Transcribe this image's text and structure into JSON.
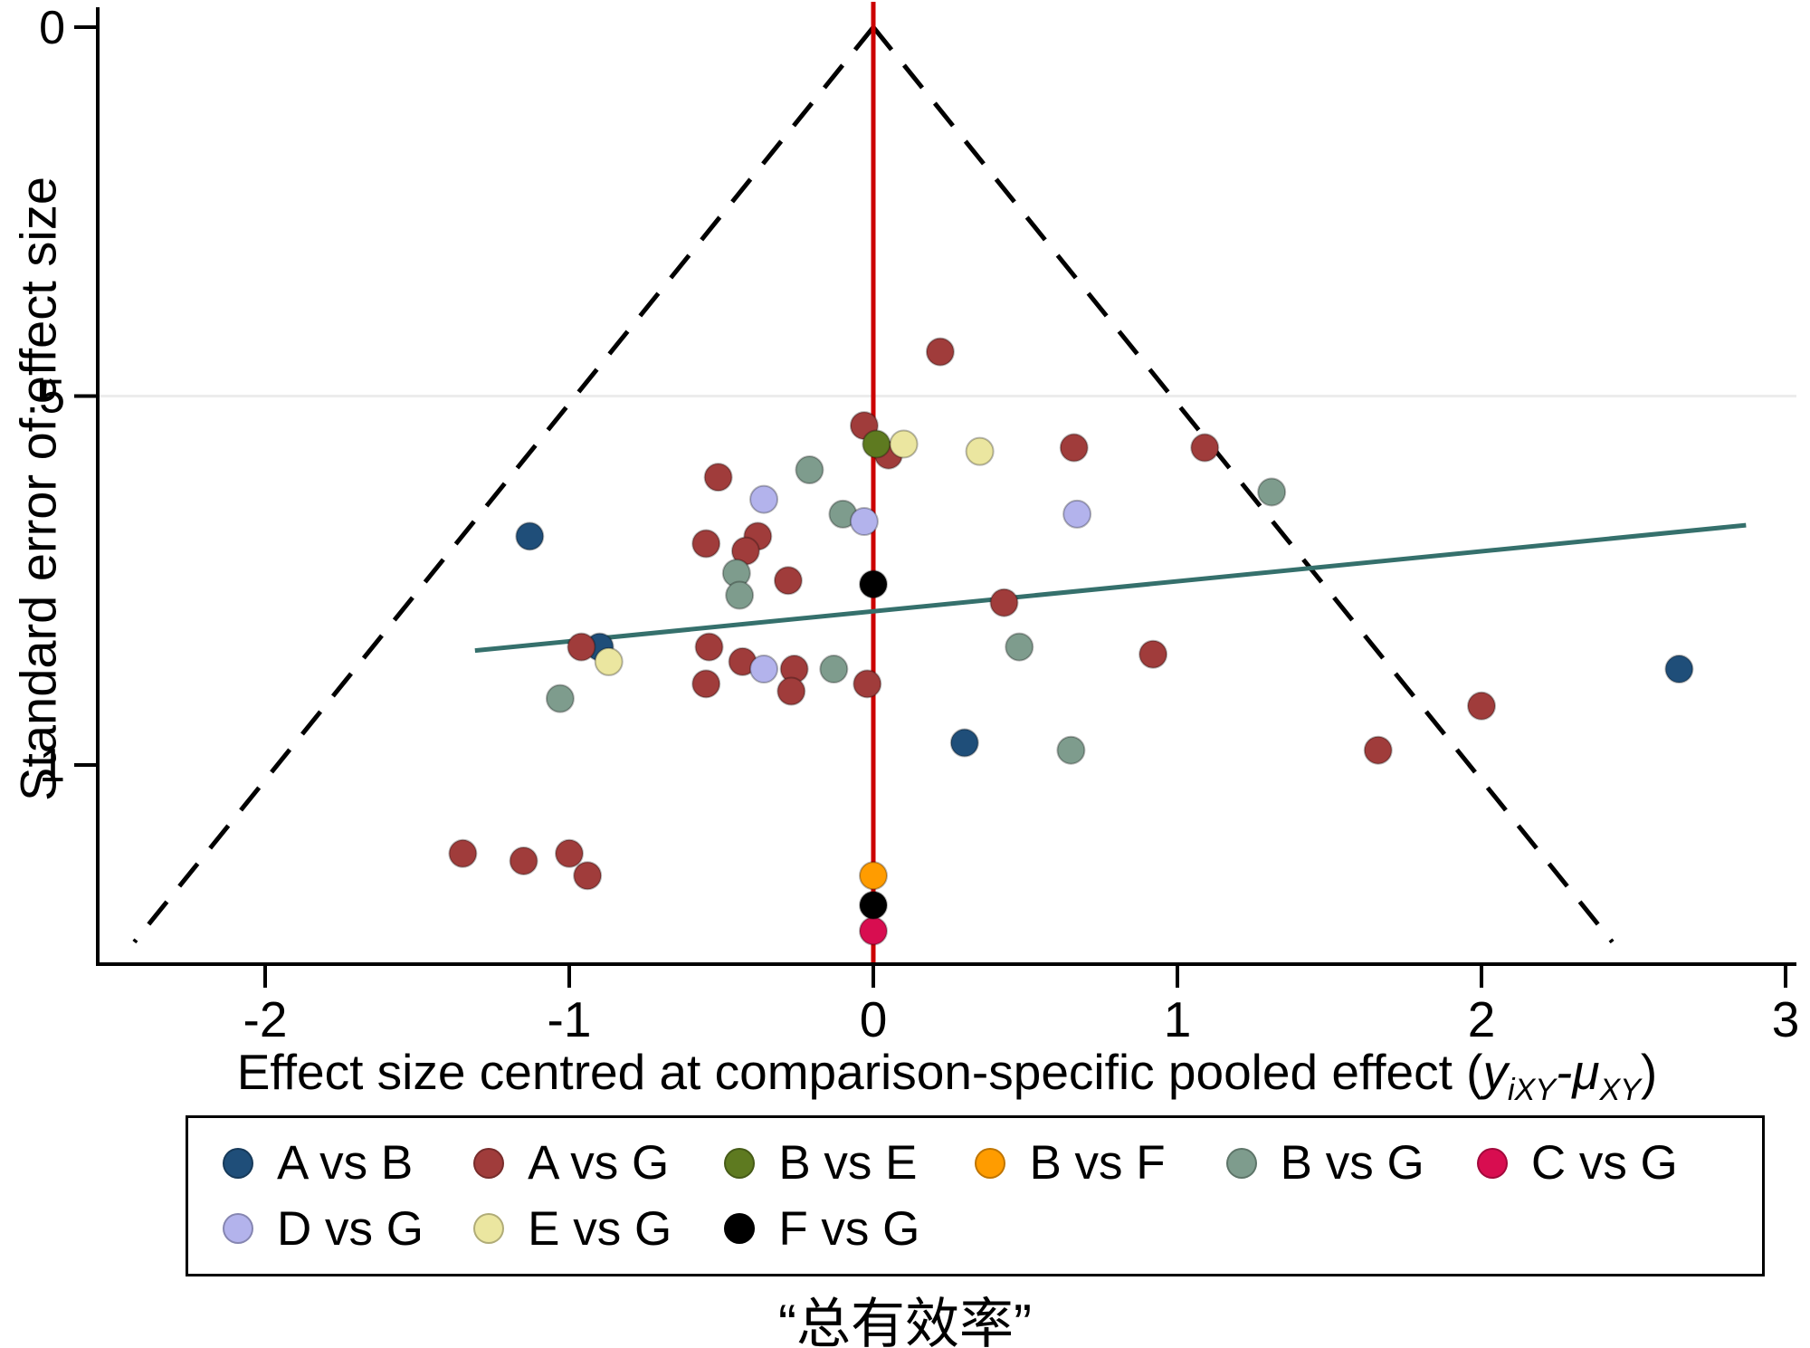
{
  "figure": {
    "caption": "“总有效率”"
  },
  "axes": {
    "y_label": "Standard error of effect size",
    "x_label": {
      "main": "Effect size centred at comparison-specific pooled effect (",
      "var1": "y",
      "sub1": "iXY",
      "mid": "-μ",
      "sub2": "XY",
      "close": ")"
    }
  },
  "chart_data": {
    "type": "scatter",
    "subtype": "comparison-adjusted funnel plot",
    "xlabel": "Effect size centred at comparison-specific pooled effect (yiXY-μXY)",
    "ylabel": "Standard error of effect size",
    "xlim": [
      -2.55,
      3.04
    ],
    "ylim_se": [
      0,
      1.27
    ],
    "y_axis_inverted": true,
    "x_ticks": [
      {
        "value": -2,
        "label": "-2"
      },
      {
        "value": -1,
        "label": "-1"
      },
      {
        "value": 0,
        "label": "0"
      },
      {
        "value": 1,
        "label": "1"
      },
      {
        "value": 2,
        "label": "2"
      },
      {
        "value": 3,
        "label": "3"
      }
    ],
    "y_ticks": [
      {
        "value": 0,
        "label": "0"
      },
      {
        "value": 0.5,
        "label": ".5"
      },
      {
        "value": 1,
        "label": "1"
      }
    ],
    "gridlines_se": [
      0.5
    ],
    "reference_line": {
      "x": 0,
      "color": "#cc0000"
    },
    "funnel": {
      "apex_x": 0,
      "apex_se": 0,
      "ci_multiplier": 1.96,
      "max_se": 1.24,
      "color": "#000000",
      "style": "dashed"
    },
    "regression_line": {
      "x_start": -1.31,
      "se_start": 0.845,
      "x_end": 2.87,
      "se_end": 0.675,
      "color": "#35706c"
    },
    "series": [
      {
        "name": "A vs B",
        "color": "#1f4e79",
        "points": [
          [
            -1.13,
            0.69
          ],
          [
            -0.9,
            0.84
          ],
          [
            0.3,
            0.97
          ],
          [
            2.65,
            0.87
          ]
        ]
      },
      {
        "name": "A vs G",
        "color": "#a03c3b",
        "points": [
          [
            0.22,
            0.44
          ],
          [
            -0.03,
            0.54
          ],
          [
            0.05,
            0.58
          ],
          [
            0.66,
            0.57
          ],
          [
            1.09,
            0.57
          ],
          [
            -0.51,
            0.61
          ],
          [
            -0.55,
            0.7
          ],
          [
            -0.38,
            0.69
          ],
          [
            -0.42,
            0.71
          ],
          [
            -0.28,
            0.75
          ],
          [
            0.43,
            0.78
          ],
          [
            -0.96,
            0.84
          ],
          [
            -0.54,
            0.84
          ],
          [
            -0.43,
            0.86
          ],
          [
            -0.26,
            0.87
          ],
          [
            -0.55,
            0.89
          ],
          [
            -0.27,
            0.9
          ],
          [
            -0.02,
            0.89
          ],
          [
            0.92,
            0.85
          ],
          [
            2.0,
            0.92
          ],
          [
            1.66,
            0.98
          ],
          [
            -1.35,
            1.12
          ],
          [
            -1.15,
            1.13
          ],
          [
            -1.0,
            1.12
          ],
          [
            -0.94,
            1.15
          ]
        ]
      },
      {
        "name": "B vs E",
        "color": "#5e7a20",
        "points": [
          [
            0.01,
            0.565
          ]
        ]
      },
      {
        "name": "B vs F",
        "color": "#ff9c00",
        "points": [
          [
            0.0,
            1.15
          ]
        ]
      },
      {
        "name": "B vs G",
        "color": "#7e9c8d",
        "points": [
          [
            -0.21,
            0.6
          ],
          [
            -0.1,
            0.66
          ],
          [
            1.31,
            0.63
          ],
          [
            -0.45,
            0.74
          ],
          [
            -0.44,
            0.77
          ],
          [
            -0.13,
            0.87
          ],
          [
            0.48,
            0.84
          ],
          [
            -1.03,
            0.91
          ],
          [
            0.65,
            0.98
          ]
        ]
      },
      {
        "name": "C vs G",
        "color": "#d80d50",
        "points": [
          [
            0.0,
            1.225
          ]
        ]
      },
      {
        "name": "D vs G",
        "color": "#b3b3ec",
        "points": [
          [
            -0.36,
            0.64
          ],
          [
            -0.03,
            0.67
          ],
          [
            0.67,
            0.66
          ],
          [
            -0.36,
            0.87
          ]
        ]
      },
      {
        "name": "E vs G",
        "color": "#ebe6a0",
        "points": [
          [
            0.1,
            0.565
          ],
          [
            0.35,
            0.575
          ],
          [
            -0.87,
            0.86
          ]
        ]
      },
      {
        "name": "F vs G",
        "color": "#000000",
        "points": [
          [
            0.0,
            0.755
          ],
          [
            0.0,
            1.19
          ]
        ]
      }
    ]
  }
}
